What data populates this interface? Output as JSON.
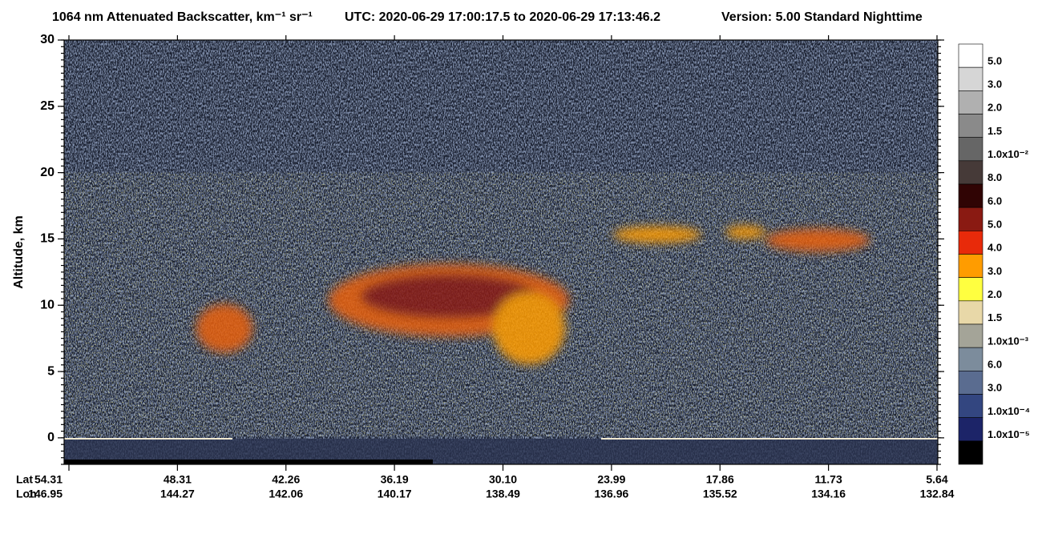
{
  "chart_data": {
    "type": "curtain",
    "title": "1064 nm Attenuated Backscatter, km⁻¹ sr⁻¹",
    "time_range": "UTC:  2020-06-29 17:00:17.5  to  2020-06-29 17:13:46.2",
    "version": "Version: 5.00  Standard  Nighttime",
    "y_label": "Altitude, km",
    "ylim": [
      -2,
      30
    ],
    "yticks": [
      0,
      5,
      10,
      15,
      20,
      25,
      30
    ],
    "lat_label": "Lat",
    "lon_label": "Lon",
    "lat": [
      "54.31",
      "48.31",
      "42.26",
      "36.19",
      "30.10",
      "23.99",
      "17.86",
      "11.73",
      "5.64"
    ],
    "lon": [
      "146.95",
      "144.27",
      "142.06",
      "140.17",
      "138.49",
      "136.96",
      "135.52",
      "134.16",
      "132.84"
    ],
    "colorbar": {
      "labels": [
        "5.0",
        "3.0",
        "2.0",
        "1.5",
        "1.0x10⁻²",
        "8.0",
        "6.0",
        "5.0",
        "4.0",
        "3.0",
        "2.0",
        "1.5",
        "1.0x10⁻³",
        "6.0",
        "3.0",
        "1.0x10⁻⁴",
        "1.0x10⁻⁵",
        null
      ],
      "colors": [
        "#ffffff",
        "#d6d6d6",
        "#b0b0b0",
        "#8a8a8a",
        "#666666",
        "#463a38",
        "#300404",
        "#8a1a12",
        "#e82a0a",
        "#ff9c00",
        "#ffff40",
        "#e8d8a8",
        "#a4a498",
        "#7c8c9c",
        "#5a6c90",
        "#334680",
        "#1c2468",
        "#000000"
      ]
    }
  }
}
